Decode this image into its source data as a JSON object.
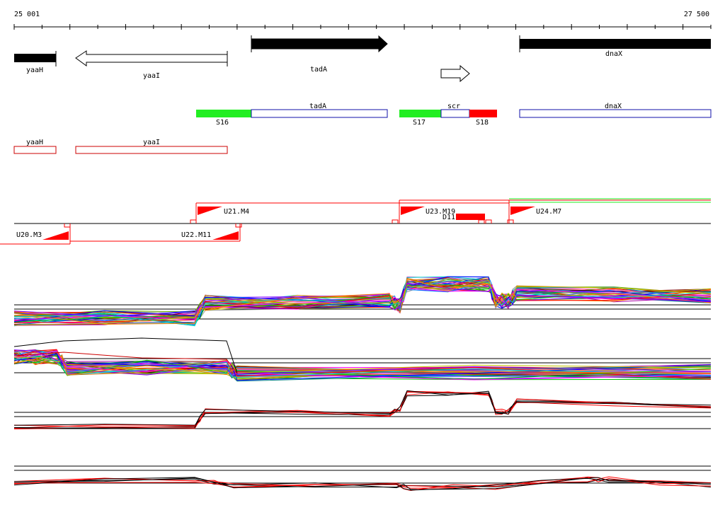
{
  "axis": {
    "start_label": "25 001",
    "end_label": "27 500",
    "start": 25001,
    "end": 27500
  },
  "genes": [
    {
      "name": "yaaH",
      "start": 25001,
      "end": 25150,
      "strand": "fill",
      "color": "#000000"
    },
    {
      "name": "yaaI",
      "start": 25220,
      "end": 25765,
      "strand": "reverse",
      "color": "#ffffff"
    },
    {
      "name": "tadA",
      "start": 25855,
      "end": 26345,
      "strand": "forward",
      "color": "#000000"
    },
    {
      "name": "",
      "start": 26510,
      "end": 26615,
      "strand": "forward",
      "color": "#ffffff"
    },
    {
      "name": "dnaX",
      "start": 26830,
      "end": 27500,
      "strand": "fill",
      "color": "#000000"
    }
  ],
  "transcripts": [
    {
      "label": "tadA",
      "start": 25855,
      "end": 26345,
      "color": "#1010aa"
    },
    {
      "label": "scr",
      "start": 26480,
      "end": 26830,
      "color": "#1010aa"
    },
    {
      "label": "dnaX",
      "start": 26830,
      "end": 27500,
      "color": "#1010aa"
    }
  ],
  "segments": [
    {
      "label": "S16",
      "start": 25655,
      "end": 25855,
      "color": "#22ee22"
    },
    {
      "label": "S17",
      "start": 26480,
      "end": 26630,
      "color": "#22ee22"
    },
    {
      "label": "S18",
      "start": 26730,
      "end": 26830,
      "color": "#ff0000"
    }
  ],
  "annotations": [
    {
      "label": "yaaH",
      "start": 25001,
      "end": 25150,
      "color": "#cc0000"
    },
    {
      "label": "yaaI",
      "start": 25220,
      "end": 25765,
      "color": "#cc0000"
    }
  ],
  "promoters": [
    {
      "label": "U21.M4",
      "pos": 25655,
      "strand": "forward"
    },
    {
      "label": "U23.M19",
      "pos": 26480,
      "strand": "forward"
    },
    {
      "label": "U24.M7",
      "pos": 26830,
      "strand": "forward"
    },
    {
      "label": "U20.M3",
      "pos": 25201,
      "strand": "reverse"
    },
    {
      "label": "U22.M11",
      "pos": 25801,
      "strand": "reverse"
    }
  ],
  "element_label": "D11",
  "colors": {
    "red": "#ff0000",
    "black": "#000000",
    "green": "#22ee22",
    "blue": "#1010aa"
  }
}
